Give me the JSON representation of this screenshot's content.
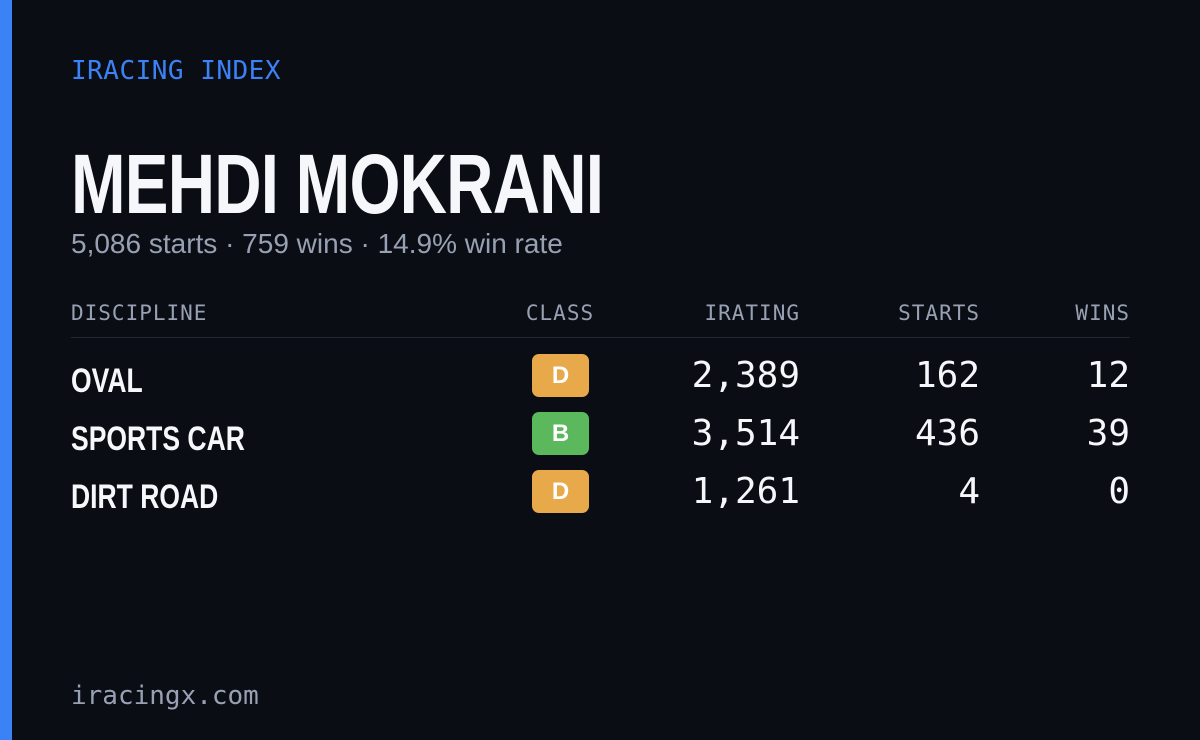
{
  "header": {
    "eyebrow": "IRACING INDEX",
    "name": "MEHDI MOKRANI",
    "summary": "5,086 starts · 759 wins · 14.9% win rate"
  },
  "table": {
    "columns": [
      "DISCIPLINE",
      "CLASS",
      "IRATING",
      "STARTS",
      "WINS"
    ],
    "rows": [
      [
        "OVAL",
        "D",
        "2,389",
        "162",
        "12"
      ],
      [
        "SPORTS CAR",
        "B",
        "3,514",
        "436",
        "39"
      ],
      [
        "DIRT ROAD",
        "D",
        "1,261",
        "4",
        "0"
      ]
    ]
  },
  "footer": {
    "site": "iracingx.com"
  }
}
